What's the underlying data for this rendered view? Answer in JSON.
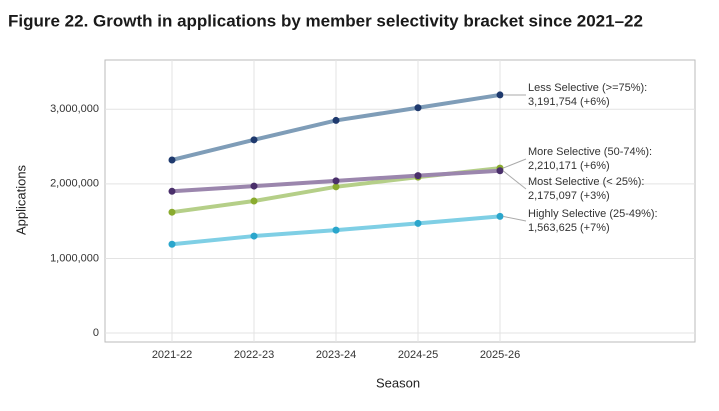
{
  "chart_data": {
    "type": "line",
    "title": "Figure 22. Growth in applications by member selectivity bracket since 2021–22",
    "x_label": "Season",
    "y_label": "Applications",
    "categories": [
      "2021-22",
      "2022-23",
      "2023-24",
      "2024-25",
      "2025-26"
    ],
    "series": [
      {
        "name": "Less Selective (>=75%):",
        "color": "#7f9db8",
        "marker_color": "#1f3a6e",
        "values": [
          2320000,
          2590000,
          2850000,
          3020000,
          3191754
        ],
        "value_labels": [
          null,
          null,
          null,
          null,
          "3,191,754 (+6%)"
        ]
      },
      {
        "name": "More Selective (50-74%):",
        "color": "#b5cf88",
        "marker_color": "#8aab2e",
        "values": [
          1620000,
          1770000,
          1960000,
          2090000,
          2210171
        ],
        "value_labels": [
          null,
          null,
          null,
          null,
          "2,210,171 (+6%)"
        ]
      },
      {
        "name": "Most Selective (< 25%):",
        "color": "#9b86ad",
        "marker_color": "#4a2f6b",
        "values": [
          1900000,
          1970000,
          2040000,
          2110000,
          2175097
        ],
        "value_labels": [
          null,
          null,
          null,
          null,
          "2,175,097 (+3%)"
        ]
      },
      {
        "name": "Highly Selective (25-49%):",
        "color": "#7fcfe5",
        "marker_color": "#2aa6cc",
        "values": [
          1190000,
          1300000,
          1380000,
          1470000,
          1563625
        ],
        "value_labels": [
          null,
          null,
          null,
          null,
          "1,563,625 (+7%)"
        ]
      }
    ],
    "ylim": [
      -120000,
      3660000
    ],
    "yticks": [
      0,
      {
        "value": 1000000,
        "label": "1,000,000"
      },
      {
        "value": 2000000,
        "label": "2,000,000"
      },
      {
        "value": 3000000,
        "label": "3,000,000"
      }
    ],
    "grid": true
  }
}
